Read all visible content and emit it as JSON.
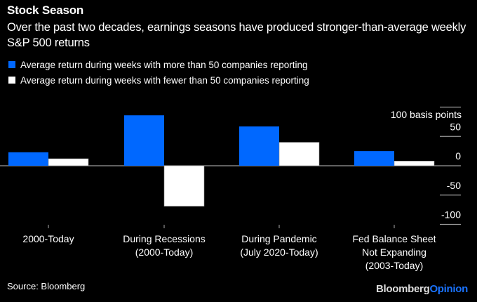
{
  "header": {
    "title": "Stock Season",
    "subtitle": "Over the past two decades, earnings seasons have produced stronger-than-average weekly S&P 500 returns"
  },
  "footer": {
    "source": "Source: Bloomberg",
    "brand_part1": "Bloomberg",
    "brand_part2": "Opinion",
    "brand_color": "#1a73ff"
  },
  "chart_data": {
    "type": "bar",
    "title": "Stock Season",
    "subtitle": "Over the past two decades, earnings seasons have produced stronger-than-average weekly S&P 500 returns",
    "xlabel": "",
    "ylabel": "basis points",
    "unit_label": "100 basis points",
    "categories": [
      "2000-Today",
      "During Recessions (2000-Today)",
      "During Pandemic (July 2020-Today)",
      "Fed Balance Sheet Not Expanding (2003-Today)"
    ],
    "category_lines": [
      [
        "2000-Today"
      ],
      [
        "During Recessions",
        "(2000-Today)"
      ],
      [
        "During Pandemic",
        "(July 2020-Today)"
      ],
      [
        "Fed Balance Sheet",
        "Not Expanding",
        "(2003-Today)"
      ]
    ],
    "series": [
      {
        "name": "Average return during weeks with more than 50 companies reporting",
        "color": "#0068ff",
        "values": [
          23,
          86,
          67,
          25
        ]
      },
      {
        "name": "Average return during weeks with fewer than 50 companies reporting",
        "color": "#ffffff",
        "values": [
          12,
          -69,
          40,
          8
        ]
      }
    ],
    "ylim": [
      -100,
      100
    ],
    "yticks": [
      100,
      50,
      0,
      -50,
      -100
    ],
    "ytick_labels": [
      "100 basis points",
      "50",
      "0",
      "-50",
      "-100"
    ],
    "grid": false,
    "legend": "top-left",
    "axis_side": "right"
  }
}
